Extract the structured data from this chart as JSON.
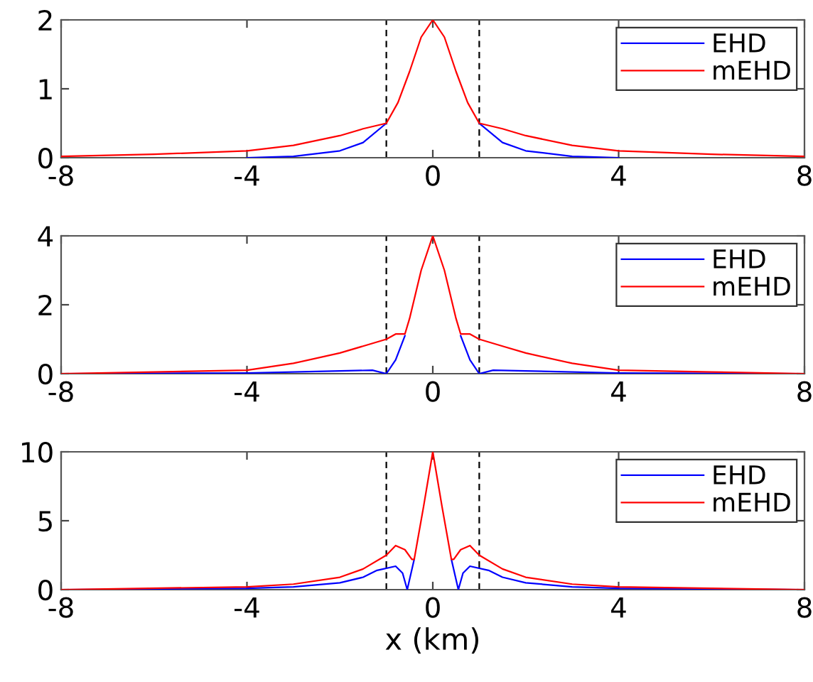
{
  "chart_data": [
    {
      "type": "line",
      "xlim": [
        -8,
        8
      ],
      "xticks": [
        -8,
        -4,
        0,
        4,
        8
      ],
      "ylim": [
        0,
        2
      ],
      "yticks": [
        0,
        1,
        2
      ],
      "legend": "top right",
      "grid": false,
      "ref_lines": [
        {
          "axis": "x",
          "value": -1,
          "color": "#000000",
          "line_style": "dashed"
        },
        {
          "axis": "x",
          "value": 1,
          "color": "#000000",
          "line_style": "dashed"
        }
      ],
      "series": [
        {
          "name": "EHD",
          "color": "#0000ff",
          "x": [
            -4,
            -3,
            -2,
            -1.5,
            -1,
            0,
            1,
            1.5,
            2,
            3,
            4
          ],
          "values": [
            0,
            0.02,
            0.1,
            0.22,
            0.5,
            null,
            0.5,
            0.22,
            0.1,
            0.02,
            0
          ]
        },
        {
          "name": "mEHD",
          "color": "#ff0000",
          "x": [
            -8,
            -6,
            -4,
            -3,
            -2,
            -1.5,
            -1,
            -0.75,
            -0.5,
            -0.25,
            0,
            0.25,
            0.5,
            0.75,
            1,
            1.5,
            2,
            3,
            4,
            6,
            8
          ],
          "values": [
            0.02,
            0.05,
            0.1,
            0.18,
            0.32,
            0.42,
            0.5,
            0.8,
            1.25,
            1.75,
            2,
            1.75,
            1.25,
            0.8,
            0.5,
            0.42,
            0.32,
            0.18,
            0.1,
            0.05,
            0.02
          ]
        }
      ]
    },
    {
      "type": "line",
      "xlim": [
        -8,
        8
      ],
      "xticks": [
        -8,
        -4,
        0,
        4,
        8
      ],
      "ylim": [
        0,
        4
      ],
      "yticks": [
        0,
        2,
        4
      ],
      "legend": "top right",
      "grid": false,
      "ref_lines": [
        {
          "axis": "x",
          "value": -1,
          "color": "#000000",
          "line_style": "dashed"
        },
        {
          "axis": "x",
          "value": 1,
          "color": "#000000",
          "line_style": "dashed"
        }
      ],
      "series": [
        {
          "name": "EHD",
          "color": "#0000ff",
          "x": [
            -8,
            -4,
            -2,
            -1.3,
            -1,
            -0.8,
            -0.6,
            0,
            0.6,
            0.8,
            1,
            1.3,
            2,
            4,
            8
          ],
          "values": [
            0,
            0.02,
            0.08,
            0.1,
            0,
            0.4,
            1.1,
            null,
            1.1,
            0.4,
            0,
            0.1,
            0.08,
            0.02,
            0
          ]
        },
        {
          "name": "mEHD",
          "color": "#ff0000",
          "x": [
            -8,
            -6,
            -4,
            -3,
            -2,
            -1.5,
            -1,
            -0.8,
            -0.6,
            -0.5,
            -0.25,
            0,
            0.25,
            0.5,
            0.6,
            0.8,
            1,
            1.5,
            2,
            3,
            4,
            6,
            8
          ],
          "values": [
            0,
            0.05,
            0.1,
            0.3,
            0.6,
            0.8,
            1,
            1.15,
            1.15,
            1.6,
            3,
            4,
            3,
            1.6,
            1.15,
            1.15,
            1,
            0.8,
            0.6,
            0.3,
            0.1,
            0.05,
            0
          ]
        }
      ]
    },
    {
      "type": "line",
      "xlim": [
        -8,
        8
      ],
      "xticks": [
        -8,
        -4,
        0,
        4,
        8
      ],
      "ylim": [
        0,
        10
      ],
      "yticks": [
        0,
        5,
        10
      ],
      "legend": "top right",
      "grid": false,
      "xlabel": "x (km)",
      "ref_lines": [
        {
          "axis": "x",
          "value": -1,
          "color": "#000000",
          "line_style": "dashed"
        },
        {
          "axis": "x",
          "value": 1,
          "color": "#000000",
          "line_style": "dashed"
        }
      ],
      "series": [
        {
          "name": "EHD",
          "color": "#0000ff",
          "x": [
            -8,
            -4,
            -3,
            -2,
            -1.5,
            -1.2,
            -0.8,
            -0.65,
            -0.55,
            -0.4,
            0,
            0.4,
            0.55,
            0.65,
            0.8,
            1.2,
            1.5,
            2,
            3,
            4,
            8
          ],
          "values": [
            0,
            0.1,
            0.2,
            0.5,
            0.9,
            1.4,
            1.7,
            1.2,
            0,
            2.2,
            null,
            2.2,
            0,
            1.2,
            1.7,
            1.4,
            0.9,
            0.5,
            0.2,
            0.1,
            0
          ]
        },
        {
          "name": "mEHD",
          "color": "#ff0000",
          "x": [
            -8,
            -4,
            -3,
            -2,
            -1.5,
            -1,
            -0.8,
            -0.6,
            -0.45,
            -0.4,
            -0.2,
            0,
            0.2,
            0.4,
            0.45,
            0.6,
            0.8,
            1,
            1.5,
            2,
            3,
            4,
            8
          ],
          "values": [
            0,
            0.2,
            0.4,
            0.9,
            1.5,
            2.5,
            3.2,
            2.9,
            2.2,
            2.2,
            6,
            10,
            6,
            2.2,
            2.2,
            2.9,
            3.2,
            2.5,
            1.5,
            0.9,
            0.4,
            0.2,
            0
          ]
        }
      ]
    }
  ]
}
